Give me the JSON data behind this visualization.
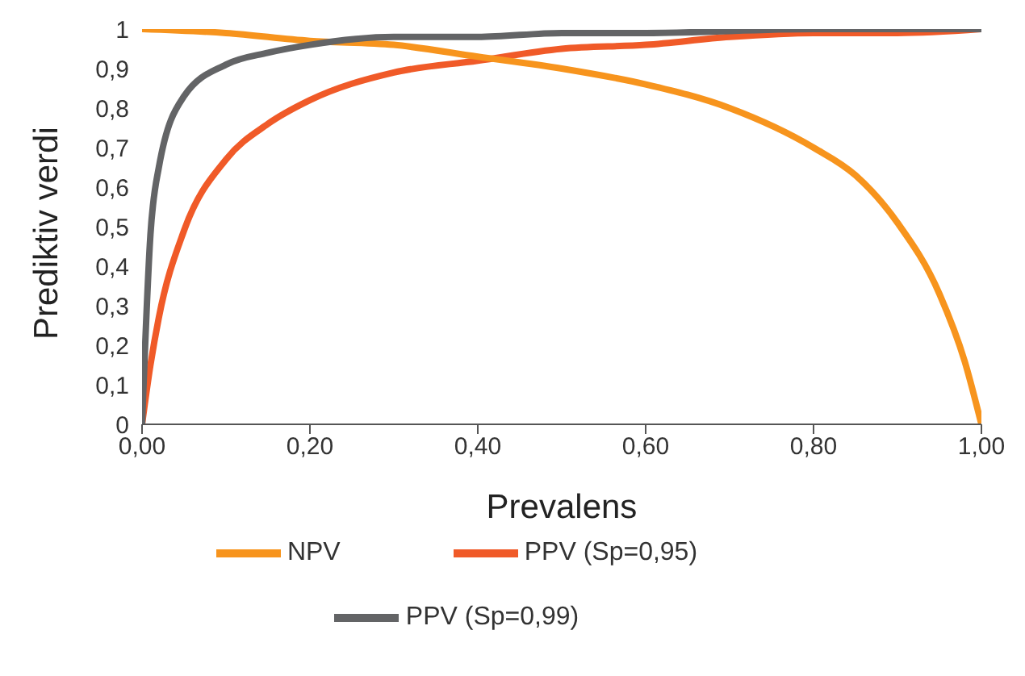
{
  "chart_data": {
    "type": "line",
    "xlabel": "Prevalens",
    "ylabel": "Prediktiv verdi",
    "xlim": [
      0,
      1
    ],
    "ylim": [
      0,
      1
    ],
    "xticks": [
      {
        "value": 0,
        "label": "0,00"
      },
      {
        "value": 0.2,
        "label": "0,20"
      },
      {
        "value": 0.4,
        "label": "0,40"
      },
      {
        "value": 0.6,
        "label": "0,60"
      },
      {
        "value": 0.8,
        "label": "0,80"
      },
      {
        "value": 1,
        "label": "1,00"
      }
    ],
    "yticks": [
      {
        "value": 0,
        "label": "0"
      },
      {
        "value": 0.1,
        "label": "0,1"
      },
      {
        "value": 0.2,
        "label": "0,2"
      },
      {
        "value": 0.3,
        "label": "0,3"
      },
      {
        "value": 0.4,
        "label": "0,4"
      },
      {
        "value": 0.5,
        "label": "0,5"
      },
      {
        "value": 0.6,
        "label": "0,6"
      },
      {
        "value": 0.7,
        "label": "0,7"
      },
      {
        "value": 0.8,
        "label": "0,8"
      },
      {
        "value": 0.9,
        "label": "0,9"
      },
      {
        "value": 1,
        "label": "1"
      }
    ],
    "grid": false,
    "legend": "bottom",
    "marker": "none",
    "line_style": "solid",
    "series": [
      {
        "name": "PPV (Sp=0,95)",
        "color": "#f05a28",
        "x": [
          0,
          0.01,
          0.02,
          0.05,
          0.1,
          0.15,
          0.2,
          0.3,
          0.4,
          0.5,
          0.6,
          0.7,
          0.8,
          0.9,
          1
        ],
        "values": [
          0,
          0.15,
          0.27,
          0.49,
          0.67,
          0.76,
          0.82,
          0.89,
          0.92,
          0.95,
          0.96,
          0.98,
          0.99,
          0.99,
          1
        ]
      },
      {
        "name": "NPV",
        "color": "#f7941d",
        "x": [
          0,
          0.1,
          0.2,
          0.3,
          0.4,
          0.5,
          0.6,
          0.7,
          0.8,
          0.85,
          0.9,
          0.95,
          0.98,
          1
        ],
        "values": [
          1,
          0.99,
          0.97,
          0.96,
          0.93,
          0.9,
          0.86,
          0.8,
          0.7,
          0.63,
          0.51,
          0.33,
          0.16,
          0
        ]
      },
      {
        "name": "PPV (Sp=0,99)",
        "color": "#636466",
        "x": [
          0,
          0.01,
          0.02,
          0.05,
          0.1,
          0.15,
          0.2,
          0.3,
          0.4,
          0.5,
          0.6,
          0.8,
          1
        ],
        "values": [
          0,
          0.48,
          0.65,
          0.83,
          0.91,
          0.94,
          0.96,
          0.98,
          0.98,
          0.99,
          0.99,
          1,
          1
        ]
      }
    ]
  }
}
